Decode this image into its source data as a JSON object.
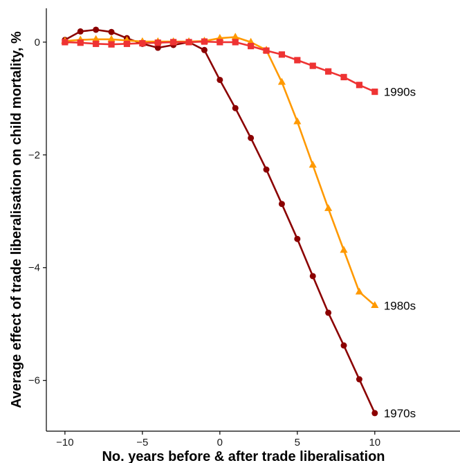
{
  "chart_data": {
    "type": "line",
    "title": "",
    "xlabel": "No. years before & after trade liberalisation",
    "ylabel": "Average effect of trade liberalisation on child mortality, %",
    "xlim": [
      -11.2,
      15.5
    ],
    "ylim": [
      -6.9,
      0.6
    ],
    "xticks": [
      -10,
      -5,
      0,
      5,
      10
    ],
    "yticks": [
      0,
      -2,
      -4,
      -6
    ],
    "x": [
      -10,
      -9,
      -8,
      -7,
      -6,
      -5,
      -4,
      -3,
      -2,
      -1,
      0,
      1,
      2,
      3,
      4,
      5,
      6,
      7,
      8,
      9,
      10
    ],
    "grid": false,
    "legend": "direct labels at line ends",
    "series": [
      {
        "name": "1970s",
        "color": "#8b0000",
        "marker": "circle",
        "values": [
          0.04,
          0.19,
          0.22,
          0.18,
          0.07,
          -0.03,
          -0.1,
          -0.05,
          0.0,
          -0.14,
          -0.67,
          -1.17,
          -1.7,
          -2.26,
          -2.87,
          -3.49,
          -4.15,
          -4.8,
          -5.38,
          -5.98,
          -6.58
        ]
      },
      {
        "name": "1980s",
        "color": "#ff9900",
        "marker": "triangle",
        "values": [
          0.02,
          0.04,
          0.05,
          0.05,
          0.03,
          0.01,
          0.01,
          0.01,
          0.01,
          0.02,
          0.07,
          0.09,
          0.0,
          -0.14,
          -0.71,
          -1.41,
          -2.18,
          -2.95,
          -3.69,
          -4.43,
          -4.67
        ]
      },
      {
        "name": "1990s",
        "color": "#ee3333",
        "marker": "square",
        "values": [
          0.0,
          -0.01,
          -0.03,
          -0.04,
          -0.03,
          -0.02,
          -0.01,
          0.0,
          0.0,
          0.01,
          0.0,
          0.0,
          -0.07,
          -0.15,
          -0.22,
          -0.32,
          -0.42,
          -0.52,
          -0.62,
          -0.76,
          -0.88
        ]
      }
    ]
  }
}
